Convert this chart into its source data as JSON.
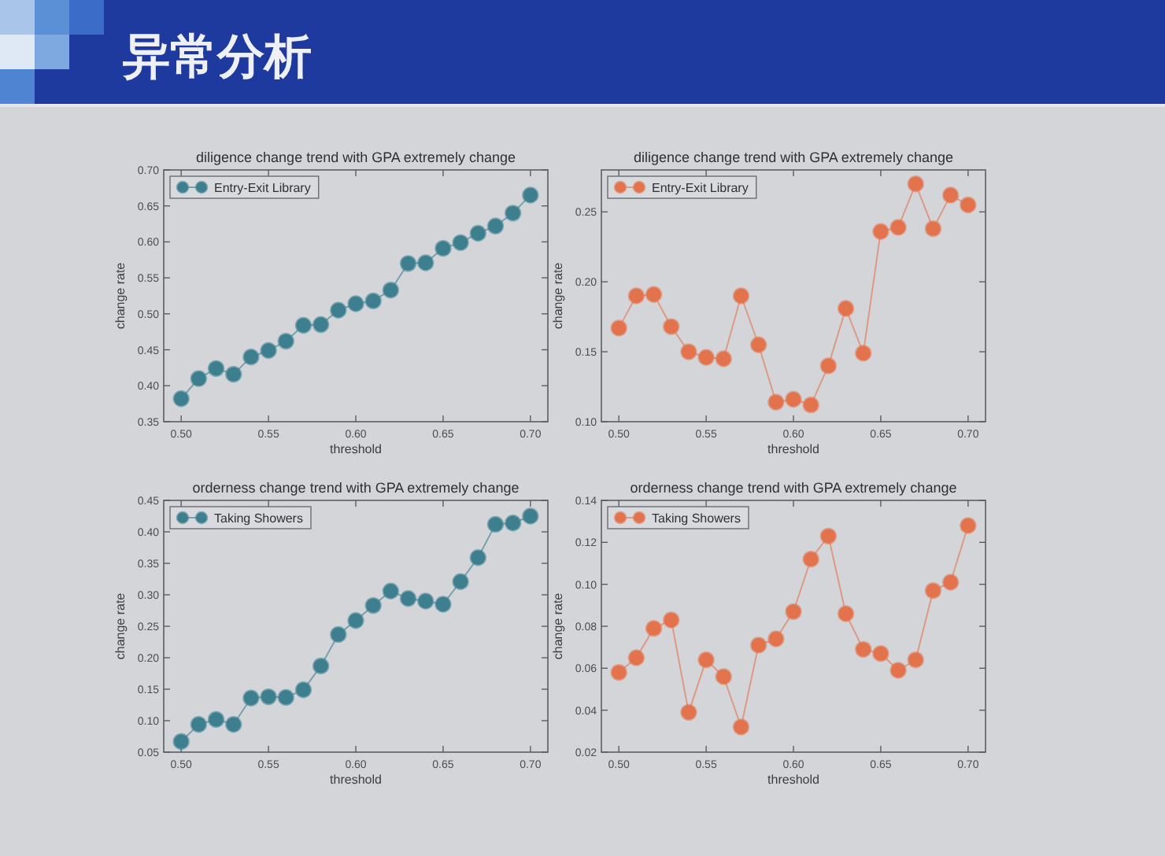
{
  "chart_data": [
    {
      "type": "other",
      "title": "异常分析"
    },
    {
      "type": "line",
      "title": "diligence change trend with GPA extremely change",
      "xlabel": "threshold",
      "ylabel": "change rate",
      "x": [
        0.5,
        0.51,
        0.52,
        0.53,
        0.54,
        0.55,
        0.56,
        0.57,
        0.58,
        0.59,
        0.6,
        0.61,
        0.62,
        0.63,
        0.64,
        0.65,
        0.66,
        0.67,
        0.68,
        0.69,
        0.7
      ],
      "series": [
        {
          "name": "Entry-Exit Library",
          "color": "#3d7f8f",
          "values": [
            0.382,
            0.41,
            0.424,
            0.416,
            0.44,
            0.449,
            0.462,
            0.484,
            0.485,
            0.505,
            0.514,
            0.518,
            0.533,
            0.57,
            0.571,
            0.591,
            0.599,
            0.612,
            0.622,
            0.64,
            0.665
          ]
        }
      ],
      "xlim": [
        0.49,
        0.71
      ],
      "xticks": [
        {
          "value": 0.5,
          "label": "0.50"
        },
        {
          "value": 0.55,
          "label": "0.55"
        },
        {
          "value": 0.6,
          "label": "0.60"
        },
        {
          "value": 0.65,
          "label": "0.65"
        },
        {
          "value": 0.7,
          "label": "0.70"
        }
      ],
      "ylim": [
        0.35,
        0.7
      ],
      "yticks": [
        0.35,
        {
          "value": 0.4,
          "label": "0.40"
        },
        0.45,
        {
          "value": 0.5,
          "label": "0.50"
        },
        0.55,
        {
          "value": 0.6,
          "label": "0.60"
        },
        0.65,
        {
          "value": 0.7,
          "label": "0.70"
        }
      ],
      "marker": "circle",
      "legend": "top left"
    },
    {
      "type": "line",
      "title": "diligence change trend with GPA extremely change",
      "xlabel": "threshold",
      "ylabel": "change rate",
      "x": [
        0.5,
        0.51,
        0.52,
        0.53,
        0.54,
        0.55,
        0.56,
        0.57,
        0.58,
        0.59,
        0.6,
        0.61,
        0.62,
        0.63,
        0.64,
        0.65,
        0.66,
        0.67,
        0.68,
        0.69,
        0.7
      ],
      "series": [
        {
          "name": "Entry-Exit Library",
          "color": "#e2734c",
          "values": [
            0.167,
            0.19,
            0.191,
            0.168,
            0.15,
            0.146,
            0.145,
            0.19,
            0.155,
            0.114,
            0.116,
            0.112,
            0.14,
            0.181,
            0.149,
            0.236,
            0.239,
            0.27,
            0.238,
            0.262,
            0.255
          ]
        }
      ],
      "xlim": [
        0.49,
        0.71
      ],
      "xticks": [
        {
          "value": 0.5,
          "label": "0.50"
        },
        {
          "value": 0.55,
          "label": "0.55"
        },
        {
          "value": 0.6,
          "label": "0.60"
        },
        {
          "value": 0.65,
          "label": "0.65"
        },
        {
          "value": 0.7,
          "label": "0.70"
        }
      ],
      "ylim": [
        0.1,
        0.28
      ],
      "yticks": [
        {
          "value": 0.1,
          "label": "0.10"
        },
        0.15,
        {
          "value": 0.2,
          "label": "0.20"
        },
        0.25
      ],
      "marker": "circle",
      "legend": "top left"
    },
    {
      "type": "line",
      "title": "orderness change trend with GPA extremely change",
      "xlabel": "threshold",
      "ylabel": "change rate",
      "x": [
        0.5,
        0.51,
        0.52,
        0.53,
        0.54,
        0.55,
        0.56,
        0.57,
        0.58,
        0.59,
        0.6,
        0.61,
        0.62,
        0.63,
        0.64,
        0.65,
        0.66,
        0.67,
        0.68,
        0.69,
        0.7
      ],
      "series": [
        {
          "name": "Taking Showers",
          "color": "#3d7f8f",
          "values": [
            0.067,
            0.094,
            0.102,
            0.094,
            0.136,
            0.138,
            0.137,
            0.149,
            0.187,
            0.237,
            0.259,
            0.283,
            0.306,
            0.294,
            0.29,
            0.285,
            0.321,
            0.359,
            0.412,
            0.414,
            0.425
          ]
        }
      ],
      "xlim": [
        0.49,
        0.71
      ],
      "xticks": [
        {
          "value": 0.5,
          "label": "0.50"
        },
        {
          "value": 0.55,
          "label": "0.55"
        },
        {
          "value": 0.6,
          "label": "0.60"
        },
        {
          "value": 0.65,
          "label": "0.65"
        },
        {
          "value": 0.7,
          "label": "0.70"
        }
      ],
      "ylim": [
        0.05,
        0.45
      ],
      "yticks": [
        0.05,
        {
          "value": 0.1,
          "label": "0.10"
        },
        0.15,
        {
          "value": 0.2,
          "label": "0.20"
        },
        0.25,
        {
          "value": 0.3,
          "label": "0.30"
        },
        0.35,
        {
          "value": 0.4,
          "label": "0.40"
        },
        0.45
      ],
      "marker": "circle",
      "legend": "top left"
    },
    {
      "type": "line",
      "title": "orderness change trend with GPA extremely change",
      "xlabel": "threshold",
      "ylabel": "change rate",
      "x": [
        0.5,
        0.51,
        0.52,
        0.53,
        0.54,
        0.55,
        0.56,
        0.57,
        0.58,
        0.59,
        0.6,
        0.61,
        0.62,
        0.63,
        0.64,
        0.65,
        0.66,
        0.67,
        0.68,
        0.69,
        0.7
      ],
      "series": [
        {
          "name": "Taking Showers",
          "color": "#e2734c",
          "values": [
            0.058,
            0.065,
            0.079,
            0.083,
            0.039,
            0.064,
            0.056,
            0.032,
            0.071,
            0.074,
            0.087,
            0.112,
            0.123,
            0.086,
            0.069,
            0.067,
            0.059,
            0.064,
            0.097,
            0.101,
            0.128
          ]
        }
      ],
      "xlim": [
        0.49,
        0.71
      ],
      "xticks": [
        {
          "value": 0.5,
          "label": "0.50"
        },
        {
          "value": 0.55,
          "label": "0.55"
        },
        {
          "value": 0.6,
          "label": "0.60"
        },
        {
          "value": 0.65,
          "label": "0.65"
        },
        {
          "value": 0.7,
          "label": "0.70"
        }
      ],
      "ylim": [
        0.02,
        0.14
      ],
      "yticks": [
        0.02,
        0.04,
        0.06,
        0.08,
        {
          "value": 0.1,
          "label": "0.10"
        },
        0.12,
        0.14
      ],
      "marker": "circle",
      "legend": "top left"
    }
  ]
}
